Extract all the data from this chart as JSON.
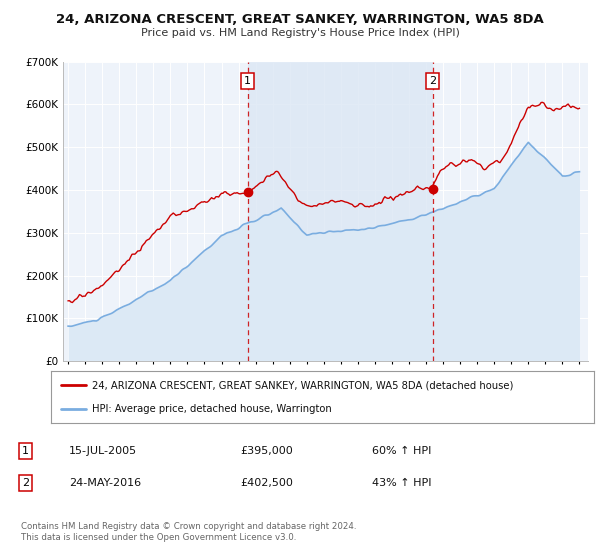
{
  "title": "24, ARIZONA CRESCENT, GREAT SANKEY, WARRINGTON, WA5 8DA",
  "subtitle": "Price paid vs. HM Land Registry's House Price Index (HPI)",
  "ylim": [
    0,
    700000
  ],
  "yticks": [
    0,
    100000,
    200000,
    300000,
    400000,
    500000,
    600000,
    700000
  ],
  "ytick_labels": [
    "£0",
    "£100K",
    "£200K",
    "£300K",
    "£400K",
    "£500K",
    "£600K",
    "£700K"
  ],
  "xlim_start": 1994.7,
  "xlim_end": 2025.5,
  "xticks": [
    1995,
    1996,
    1997,
    1998,
    1999,
    2000,
    2001,
    2002,
    2003,
    2004,
    2005,
    2006,
    2007,
    2008,
    2009,
    2010,
    2011,
    2012,
    2013,
    2014,
    2015,
    2016,
    2017,
    2018,
    2019,
    2020,
    2021,
    2022,
    2023,
    2024,
    2025
  ],
  "property_color": "#cc0000",
  "hpi_color": "#7aade0",
  "hpi_fill_color": "#dce9f5",
  "band_color": "#dde8f5",
  "background_color": "#eef3fa",
  "grid_color": "#ffffff",
  "event1_x": 2005.54,
  "event1_price": 395000,
  "event2_x": 2016.38,
  "event2_price": 402500,
  "legend_property_label": "24, ARIZONA CRESCENT, GREAT SANKEY, WARRINGTON, WA5 8DA (detached house)",
  "legend_hpi_label": "HPI: Average price, detached house, Warrington",
  "annotation1_label": "1",
  "annotation1_date": "15-JUL-2005",
  "annotation1_price": "£395,000",
  "annotation1_pct": "60% ↑ HPI",
  "annotation2_label": "2",
  "annotation2_date": "24-MAY-2016",
  "annotation2_price": "£402,500",
  "annotation2_pct": "43% ↑ HPI",
  "footer_line1": "Contains HM Land Registry data © Crown copyright and database right 2024.",
  "footer_line2": "This data is licensed under the Open Government Licence v3.0."
}
